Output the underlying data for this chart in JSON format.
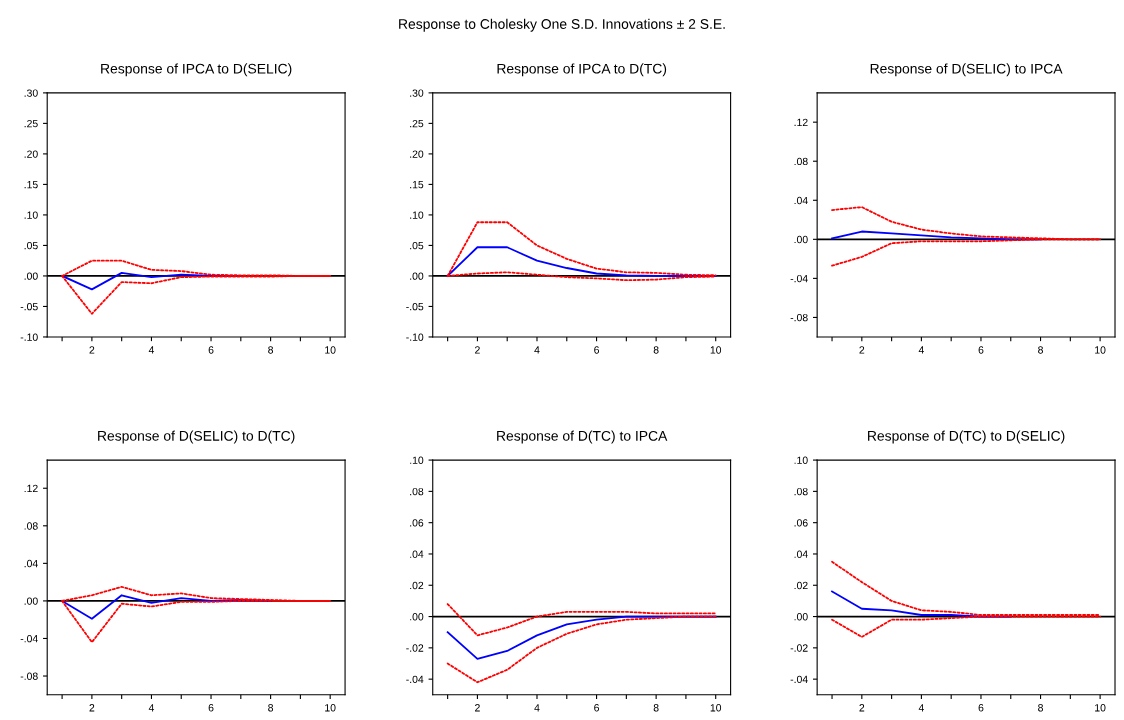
{
  "chart_data": [
    {
      "type": "line",
      "title": "Response of IPCA to D(SELIC)",
      "annotations": [
        "Response to Cholesky One S.D. Innovations ± 2 S.E."
      ],
      "x": [
        1,
        2,
        3,
        4,
        5,
        6,
        7,
        8,
        9,
        10
      ],
      "xlim": [
        0.5,
        10.5
      ],
      "xticks": [
        {
          "value": 1,
          "label": null
        },
        2,
        {
          "value": 3,
          "label": null
        },
        4,
        {
          "value": 5,
          "label": null
        },
        6,
        {
          "value": 7,
          "label": null
        },
        8,
        {
          "value": 9,
          "label": null
        },
        10
      ],
      "ylim": [
        -0.1,
        0.3
      ],
      "yticks": [
        {
          "value": -0.1,
          "label": "-.10"
        },
        {
          "value": -0.05,
          "label": "-.05"
        },
        {
          "value": 0,
          "label": ".00"
        },
        {
          "value": 0.05,
          "label": ".05"
        },
        {
          "value": 0.1,
          "label": ".10"
        },
        {
          "value": 0.15,
          "label": ".15"
        },
        {
          "value": 0.2,
          "label": ".20"
        },
        {
          "value": 0.25,
          "label": ".25"
        },
        {
          "value": 0.3,
          "label": ".30"
        }
      ],
      "ref_lines": [
        {
          "axis": "y",
          "value": 0,
          "color": "#000000"
        }
      ],
      "series": [
        {
          "color": "#ff0000",
          "line_style": "dotted",
          "values": [
            0,
            0.025,
            0.025,
            0.01,
            0.008,
            0.002,
            0.001,
            0.001,
            0,
            0
          ]
        },
        {
          "color": "#ff0000",
          "line_style": "dotted",
          "values": [
            0,
            -0.062,
            -0.01,
            -0.012,
            -0.002,
            -0.001,
            -0.001,
            -0.001,
            0,
            0
          ]
        },
        {
          "color": "#0000ff",
          "line_style": "solid",
          "values": [
            0,
            -0.022,
            0.005,
            -0.002,
            0.002,
            0,
            0,
            null,
            null,
            null
          ]
        }
      ]
    },
    {
      "type": "line",
      "title": "Response of IPCA to D(TC)",
      "x": [
        1,
        2,
        3,
        4,
        5,
        6,
        7,
        8,
        9,
        10
      ],
      "xlim": [
        0.5,
        10.5
      ],
      "xticks": [
        {
          "value": 1,
          "label": null
        },
        2,
        {
          "value": 3,
          "label": null
        },
        4,
        {
          "value": 5,
          "label": null
        },
        6,
        {
          "value": 7,
          "label": null
        },
        8,
        {
          "value": 9,
          "label": null
        },
        10
      ],
      "ylim": [
        -0.1,
        0.3
      ],
      "yticks": [
        {
          "value": -0.1,
          "label": "-.10"
        },
        {
          "value": -0.05,
          "label": "-.05"
        },
        {
          "value": 0,
          "label": ".00"
        },
        {
          "value": 0.05,
          "label": ".05"
        },
        {
          "value": 0.1,
          "label": ".10"
        },
        {
          "value": 0.15,
          "label": ".15"
        },
        {
          "value": 0.2,
          "label": ".20"
        },
        {
          "value": 0.25,
          "label": ".25"
        },
        {
          "value": 0.3,
          "label": ".30"
        }
      ],
      "ref_lines": [
        {
          "axis": "y",
          "value": 0,
          "color": "#000000"
        }
      ],
      "series": [
        {
          "color": "#ff0000",
          "line_style": "dotted",
          "values": [
            0,
            0.088,
            0.088,
            0.05,
            0.028,
            0.012,
            0.006,
            0.005,
            0.002,
            0.001
          ]
        },
        {
          "color": "#ff0000",
          "line_style": "dotted",
          "values": [
            0,
            0.004,
            0.006,
            0.002,
            -0.002,
            -0.004,
            -0.007,
            -0.006,
            -0.002,
            -0.001
          ]
        },
        {
          "color": "#0000ff",
          "line_style": "solid",
          "values": [
            0,
            0.047,
            0.047,
            0.025,
            0.013,
            0.004,
            0.001,
            0,
            0,
            0
          ]
        }
      ]
    },
    {
      "type": "line",
      "title": "Response of D(SELIC) to IPCA",
      "x": [
        1,
        2,
        3,
        4,
        5,
        6,
        7,
        8,
        9,
        10
      ],
      "xlim": [
        0.5,
        10.5
      ],
      "xticks": [
        {
          "value": 1,
          "label": null
        },
        2,
        {
          "value": 3,
          "label": null
        },
        4,
        {
          "value": 5,
          "label": null
        },
        6,
        {
          "value": 7,
          "label": null
        },
        8,
        {
          "value": 9,
          "label": null
        },
        10
      ],
      "ylim": [
        -0.1,
        0.15
      ],
      "yticks": [
        {
          "value": -0.08,
          "label": "-.08"
        },
        {
          "value": -0.04,
          "label": "-.04"
        },
        {
          "value": 0,
          "label": ".00"
        },
        {
          "value": 0.04,
          "label": ".04"
        },
        {
          "value": 0.08,
          "label": ".08"
        },
        {
          "value": 0.12,
          "label": ".12"
        }
      ],
      "ref_lines": [
        {
          "axis": "y",
          "value": 0,
          "color": "#000000"
        }
      ],
      "series": [
        {
          "color": "#ff0000",
          "line_style": "dotted",
          "values": [
            0.03,
            0.033,
            0.018,
            0.01,
            0.006,
            0.003,
            0.002,
            0.001,
            0,
            0
          ]
        },
        {
          "color": "#ff0000",
          "line_style": "dotted",
          "values": [
            -0.027,
            -0.018,
            -0.004,
            -0.002,
            -0.002,
            -0.002,
            -0.001,
            0,
            0,
            0
          ]
        },
        {
          "color": "#0000ff",
          "line_style": "solid",
          "values": [
            0.001,
            0.008,
            0.006,
            0.004,
            0.002,
            0.001,
            0,
            0,
            null,
            null
          ]
        }
      ]
    },
    {
      "type": "line",
      "title": "Response of D(SELIC) to D(TC)",
      "x": [
        1,
        2,
        3,
        4,
        5,
        6,
        7,
        8,
        9,
        10
      ],
      "xlim": [
        0.5,
        10.5
      ],
      "xticks": [
        {
          "value": 1,
          "label": null
        },
        2,
        {
          "value": 3,
          "label": null
        },
        4,
        {
          "value": 5,
          "label": null
        },
        6,
        {
          "value": 7,
          "label": null
        },
        8,
        {
          "value": 9,
          "label": null
        },
        10
      ],
      "ylim": [
        -0.1,
        0.15
      ],
      "yticks": [
        {
          "value": -0.08,
          "label": "-.08"
        },
        {
          "value": -0.04,
          "label": "-.04"
        },
        {
          "value": 0,
          "label": ".00"
        },
        {
          "value": 0.04,
          "label": ".04"
        },
        {
          "value": 0.08,
          "label": ".08"
        },
        {
          "value": 0.12,
          "label": ".12"
        }
      ],
      "ref_lines": [
        {
          "axis": "y",
          "value": 0,
          "color": "#000000"
        }
      ],
      "series": [
        {
          "color": "#ff0000",
          "line_style": "dotted",
          "values": [
            0,
            0.006,
            0.015,
            0.006,
            0.008,
            0.003,
            0.002,
            0.001,
            0,
            0
          ]
        },
        {
          "color": "#ff0000",
          "line_style": "dotted",
          "values": [
            0,
            -0.044,
            -0.003,
            -0.006,
            -0.001,
            -0.001,
            0,
            0,
            0,
            0
          ]
        },
        {
          "color": "#0000ff",
          "line_style": "solid",
          "values": [
            0,
            -0.019,
            0.006,
            -0.002,
            0.003,
            0,
            0.001,
            0,
            null,
            null
          ]
        }
      ]
    },
    {
      "type": "line",
      "title": "Response of D(TC) to IPCA",
      "x": [
        1,
        2,
        3,
        4,
        5,
        6,
        7,
        8,
        9,
        10
      ],
      "xlim": [
        0.5,
        10.5
      ],
      "xticks": [
        {
          "value": 1,
          "label": null
        },
        2,
        {
          "value": 3,
          "label": null
        },
        4,
        {
          "value": 5,
          "label": null
        },
        6,
        {
          "value": 7,
          "label": null
        },
        8,
        {
          "value": 9,
          "label": null
        },
        10
      ],
      "ylim": [
        -0.05,
        0.1
      ],
      "yticks": [
        {
          "value": -0.04,
          "label": "-.04"
        },
        {
          "value": -0.02,
          "label": "-.02"
        },
        {
          "value": 0,
          "label": ".00"
        },
        {
          "value": 0.02,
          "label": ".02"
        },
        {
          "value": 0.04,
          "label": ".04"
        },
        {
          "value": 0.06,
          "label": ".06"
        },
        {
          "value": 0.08,
          "label": ".08"
        },
        {
          "value": 0.1,
          "label": ".10"
        }
      ],
      "ref_lines": [
        {
          "axis": "y",
          "value": 0,
          "color": "#000000"
        }
      ],
      "series": [
        {
          "color": "#ff0000",
          "line_style": "dotted",
          "values": [
            0.008,
            -0.012,
            -0.007,
            0,
            0.003,
            0.003,
            0.003,
            0.002,
            0.002,
            0.002
          ]
        },
        {
          "color": "#ff0000",
          "line_style": "dotted",
          "values": [
            -0.03,
            -0.042,
            -0.034,
            -0.02,
            -0.011,
            -0.005,
            -0.002,
            -0.001,
            0,
            0
          ]
        },
        {
          "color": "#0000ff",
          "line_style": "solid",
          "values": [
            -0.01,
            -0.027,
            -0.022,
            -0.012,
            -0.005,
            -0.002,
            0,
            0,
            0,
            0
          ]
        }
      ]
    },
    {
      "type": "line",
      "title": "Response of D(TC) to D(SELIC)",
      "x": [
        1,
        2,
        3,
        4,
        5,
        6,
        7,
        8,
        9,
        10
      ],
      "xlim": [
        0.5,
        10.5
      ],
      "xticks": [
        {
          "value": 1,
          "label": null
        },
        2,
        {
          "value": 3,
          "label": null
        },
        4,
        {
          "value": 5,
          "label": null
        },
        6,
        {
          "value": 7,
          "label": null
        },
        8,
        {
          "value": 9,
          "label": null
        },
        10
      ],
      "ylim": [
        -0.05,
        0.1
      ],
      "yticks": [
        {
          "value": -0.04,
          "label": "-.04"
        },
        {
          "value": -0.02,
          "label": "-.02"
        },
        {
          "value": 0,
          "label": ".00"
        },
        {
          "value": 0.02,
          "label": ".02"
        },
        {
          "value": 0.04,
          "label": ".04"
        },
        {
          "value": 0.06,
          "label": ".06"
        },
        {
          "value": 0.08,
          "label": ".08"
        },
        {
          "value": 0.1,
          "label": ".10"
        }
      ],
      "ref_lines": [
        {
          "axis": "y",
          "value": 0,
          "color": "#000000"
        }
      ],
      "series": [
        {
          "color": "#ff0000",
          "line_style": "dotted",
          "values": [
            0.035,
            0.022,
            0.01,
            0.004,
            0.003,
            0.001,
            0.001,
            0.001,
            0.001,
            0.001
          ]
        },
        {
          "color": "#ff0000",
          "line_style": "dotted",
          "values": [
            -0.002,
            -0.013,
            -0.002,
            -0.002,
            -0.001,
            0,
            0,
            0,
            0,
            0
          ]
        },
        {
          "color": "#0000ff",
          "line_style": "solid",
          "values": [
            0.016,
            0.005,
            0.004,
            0.001,
            0.001,
            0,
            0,
            null,
            null,
            null
          ]
        }
      ]
    }
  ]
}
